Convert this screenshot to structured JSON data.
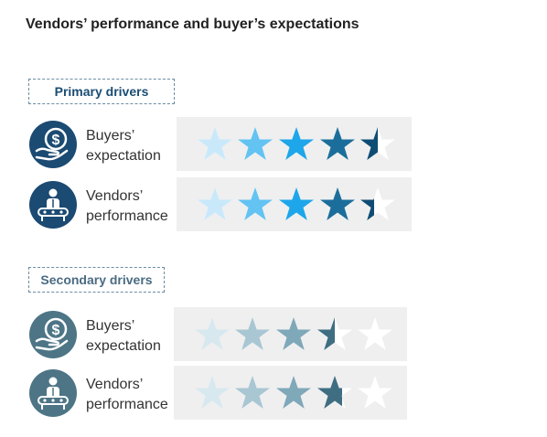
{
  "title": "Vendors’ performance and buyer’s expectations",
  "sections": [
    {
      "label": "Primary drivers",
      "label_color": "#1a4d73",
      "icon_color": "#1b4a72",
      "rows": [
        {
          "line1": "Buyers’",
          "line2": "expectation",
          "icon": "dollar-hand-icon",
          "rating": 4.5
        },
        {
          "line1": "Vendors’",
          "line2": "performance",
          "icon": "vendor-person-icon",
          "rating": 4.4
        }
      ],
      "star_colors": [
        "#c9e9fb",
        "#63c3f2",
        "#1da6ea",
        "#1b6e9b",
        "#0f4c74"
      ]
    },
    {
      "label": "Secondary drivers",
      "label_color": "#4a6b82",
      "icon_color": "#4d7586",
      "rows": [
        {
          "line1": "Buyers’",
          "line2": "expectation",
          "icon": "dollar-hand-icon",
          "rating": 3.5
        },
        {
          "line1": "Vendors’",
          "line2": "performance",
          "icon": "vendor-person-icon",
          "rating": 3.7
        }
      ],
      "star_colors": [
        "#d8e8ef",
        "#a9c6d3",
        "#7fa8b9",
        "#3f6e83",
        "#2f5c70"
      ]
    }
  ]
}
